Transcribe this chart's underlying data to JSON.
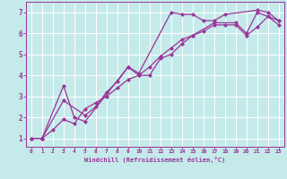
{
  "xlabel": "Windchill (Refroidissement éolien,°C)",
  "xlim": [
    -0.5,
    23.5
  ],
  "ylim": [
    0.6,
    7.5
  ],
  "xticks": [
    0,
    1,
    2,
    3,
    4,
    5,
    6,
    7,
    8,
    9,
    10,
    11,
    12,
    13,
    14,
    15,
    16,
    17,
    18,
    19,
    20,
    21,
    22,
    23
  ],
  "yticks": [
    1,
    2,
    3,
    4,
    5,
    6,
    7
  ],
  "background_color": "#c5eaea",
  "grid_color": "#ffffff",
  "line_color": "#993399",
  "marker": "D",
  "series": [
    {
      "x": [
        0,
        1,
        3,
        4,
        5,
        9,
        10,
        13,
        14,
        15,
        16,
        17,
        18,
        21,
        22,
        23
      ],
      "y": [
        1,
        1,
        3.5,
        2.0,
        1.8,
        4.4,
        4.1,
        7.0,
        6.9,
        6.9,
        6.6,
        6.6,
        6.9,
        7.1,
        7.0,
        6.6
      ]
    },
    {
      "x": [
        0,
        1,
        3,
        5,
        6,
        7,
        8,
        9,
        10,
        11,
        12,
        13,
        14,
        15,
        17,
        19,
        20,
        21,
        23
      ],
      "y": [
        1,
        1,
        2.8,
        2.1,
        2.5,
        3.2,
        3.7,
        4.4,
        4.0,
        4.0,
        4.8,
        5.0,
        5.5,
        5.9,
        6.5,
        6.5,
        6.0,
        7.0,
        6.6
      ]
    },
    {
      "x": [
        0,
        1,
        2,
        3,
        4,
        5,
        6,
        7,
        8,
        9,
        10,
        11,
        12,
        13,
        14,
        15,
        16,
        17,
        18,
        19,
        20,
        21,
        22,
        23
      ],
      "y": [
        1,
        1,
        1.4,
        1.9,
        1.7,
        2.4,
        2.7,
        3.0,
        3.4,
        3.8,
        4.0,
        4.4,
        4.9,
        5.3,
        5.7,
        5.9,
        6.1,
        6.4,
        6.4,
        6.4,
        5.9,
        6.3,
        6.8,
        6.4
      ]
    }
  ]
}
